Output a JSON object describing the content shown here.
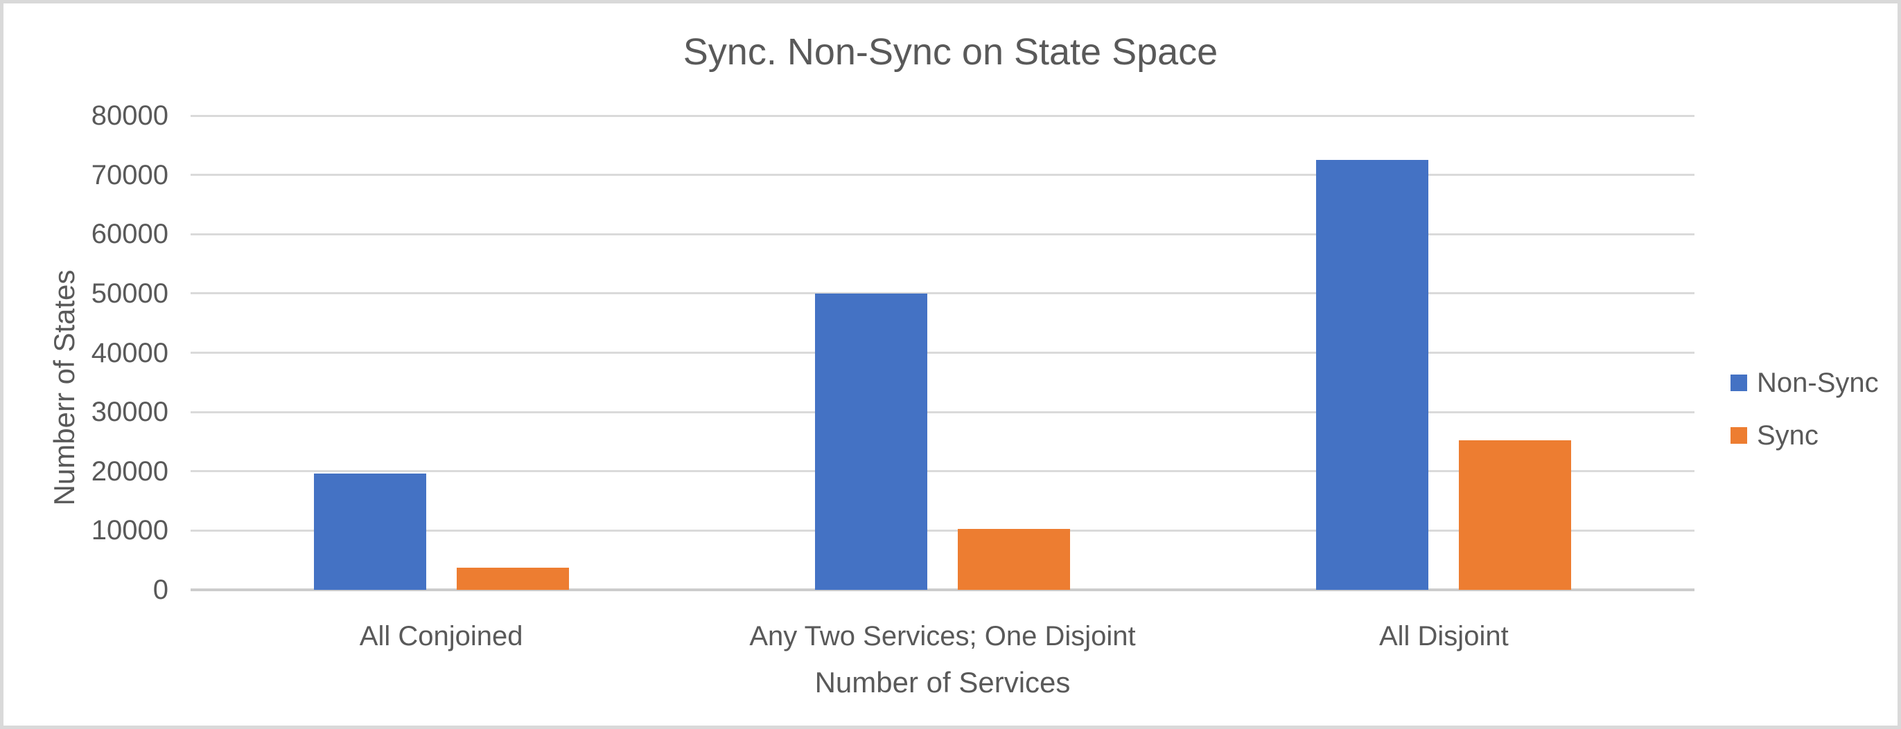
{
  "window": {
    "background": "#ffffff",
    "border_color": "#d9d9d9"
  },
  "chart_data": {
    "type": "bar",
    "title": "Sync. Non-Sync on State Space",
    "xlabel": "Number of Services",
    "ylabel": "Numberr of States",
    "categories": [
      "All Conjoined",
      "Any Two Services; One Disjoint",
      "All Disjoint"
    ],
    "series": [
      {
        "name": "Non-Sync",
        "color": "#4472C4",
        "values": [
          19600,
          50000,
          72500
        ]
      },
      {
        "name": "Sync",
        "color": "#ED7D31",
        "values": [
          3700,
          10300,
          25200
        ]
      }
    ],
    "ylim": [
      0,
      80000
    ],
    "ytick_step": 10000,
    "yticks": [
      0,
      10000,
      20000,
      30000,
      40000,
      50000,
      60000,
      70000,
      80000
    ],
    "grid": true,
    "legend_position": "right",
    "colors": {
      "text": "#595959",
      "gridline": "#dadada",
      "axis_line": "#cccccc"
    }
  }
}
